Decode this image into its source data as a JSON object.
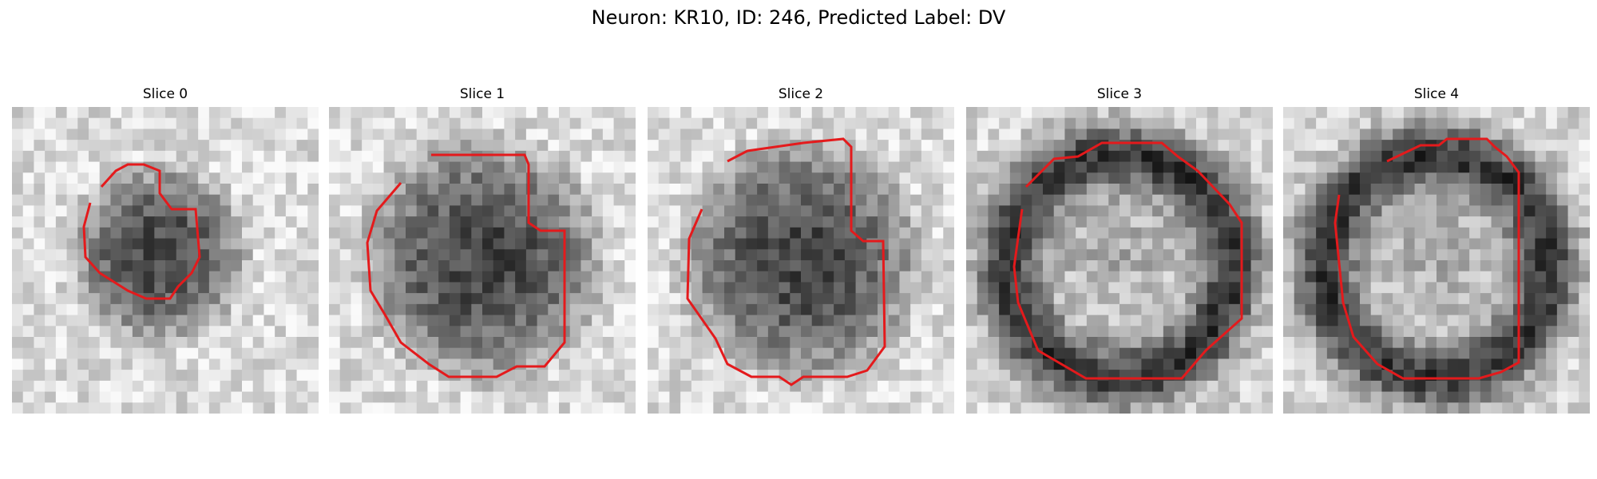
{
  "figure": {
    "title": "Neuron: KR10, ID: 246, Predicted Label: DV"
  },
  "panels": [
    {
      "title": "Slice 0",
      "contour_color": "#e41a1c"
    },
    {
      "title": "Slice 1",
      "contour_color": "#e41a1c"
    },
    {
      "title": "Slice 2",
      "contour_color": "#e41a1c"
    },
    {
      "title": "Slice 3",
      "contour_color": "#e41a1c"
    },
    {
      "title": "Slice 4",
      "contour_color": "#e41a1c"
    }
  ],
  "colormap": "gray"
}
